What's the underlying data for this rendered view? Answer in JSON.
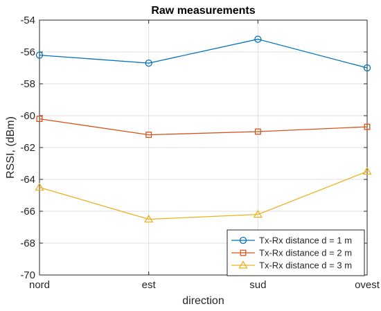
{
  "chart_data": {
    "type": "line",
    "title": "Raw measurements",
    "xlabel": "direction",
    "ylabel": "RSSI, (dBm)",
    "categories": [
      "nord",
      "est",
      "sud",
      "ovest"
    ],
    "ylim": [
      -70,
      -54
    ],
    "yticks": [
      -70,
      -68,
      -66,
      -64,
      -62,
      -60,
      -58,
      -56,
      -54
    ],
    "grid": true,
    "legend_position": "bottom-right",
    "series": [
      {
        "name": "Tx-Rx distance d = 1 m",
        "color": "#0072BD",
        "marker": "circle",
        "values": [
          -56.2,
          -56.7,
          -55.2,
          -57.0
        ]
      },
      {
        "name": "Tx-Rx distance d = 2 m",
        "color": "#D95319",
        "marker": "square",
        "values": [
          -60.2,
          -61.2,
          -61.0,
          -60.7
        ]
      },
      {
        "name": "Tx-Rx distance d = 3 m",
        "color": "#EDB120",
        "marker": "triangle",
        "values": [
          -64.5,
          -66.5,
          -66.2,
          -63.5
        ]
      }
    ]
  }
}
